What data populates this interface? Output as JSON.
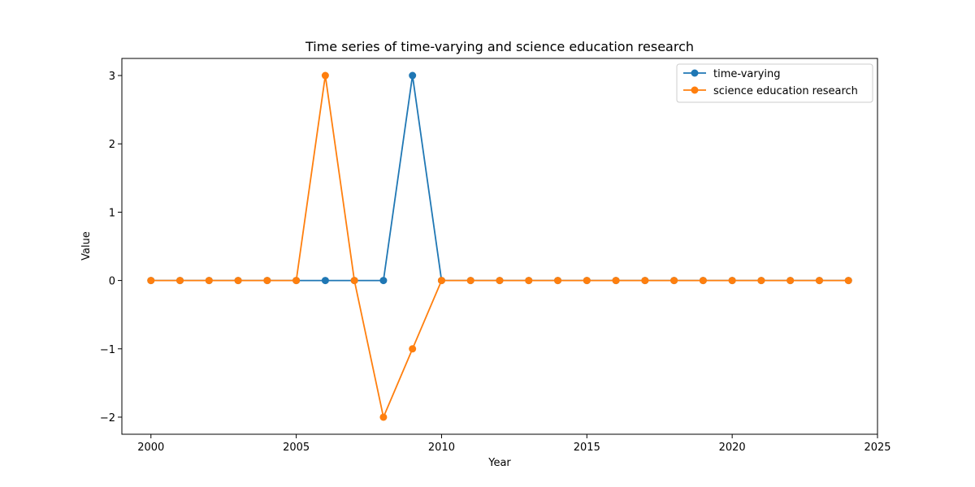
{
  "chart_data": {
    "type": "line",
    "title": "Time series of time-varying and science education research",
    "xlabel": "Year",
    "ylabel": "Value",
    "xlim": [
      1999,
      2025
    ],
    "ylim": [
      -2.25,
      3.25
    ],
    "x_ticks": [
      2000,
      2005,
      2010,
      2015,
      2020,
      2025
    ],
    "y_ticks": [
      -2,
      -1,
      0,
      1,
      2,
      3
    ],
    "y_tick_labels": [
      "−2",
      "−1",
      "0",
      "1",
      "2",
      "3"
    ],
    "legend_position": "top-right",
    "x": [
      2000,
      2001,
      2002,
      2003,
      2004,
      2005,
      2006,
      2007,
      2008,
      2009,
      2010,
      2011,
      2012,
      2013,
      2014,
      2015,
      2016,
      2017,
      2018,
      2019,
      2020,
      2021,
      2022,
      2023,
      2024
    ],
    "series": [
      {
        "name": "time-varying",
        "color": "#1f77b4",
        "values": [
          0,
          0,
          0,
          0,
          0,
          0,
          0,
          0,
          0,
          3,
          0,
          0,
          0,
          0,
          0,
          0,
          0,
          0,
          0,
          0,
          0,
          0,
          0,
          0,
          0
        ]
      },
      {
        "name": "science education research",
        "color": "#ff7f0e",
        "values": [
          0,
          0,
          0,
          0,
          0,
          0,
          3,
          0,
          -2,
          -1,
          0,
          0,
          0,
          0,
          0,
          0,
          0,
          0,
          0,
          0,
          0,
          0,
          0,
          0,
          0
        ]
      }
    ]
  }
}
